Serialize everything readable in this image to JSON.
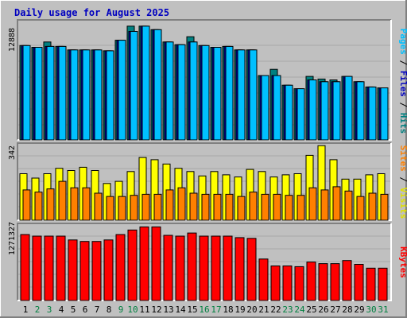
{
  "chart_data": {
    "type": "bar",
    "title": "Daily usage for August 2025",
    "days": [
      "1",
      "2",
      "3",
      "4",
      "5",
      "6",
      "7",
      "8",
      "9",
      "10",
      "11",
      "12",
      "13",
      "14",
      "15",
      "16",
      "17",
      "18",
      "19",
      "20",
      "21",
      "22",
      "23",
      "24",
      "25",
      "26",
      "27",
      "28",
      "29",
      "30",
      "31"
    ],
    "weekend_days": [
      "2",
      "3",
      "9",
      "10",
      "16",
      "17",
      "23",
      "24",
      "30",
      "31"
    ],
    "weekday_color": "#000000",
    "weekend_color": "#008040",
    "panels": [
      {
        "id": "top",
        "ymax_label": "12888",
        "ymax": 12888,
        "legend": [
          {
            "text": "Hits",
            "color": "#008080"
          },
          {
            "text": "Files",
            "color": "#0000c0"
          },
          {
            "text": "Pages",
            "color": "#00c0ff"
          }
        ],
        "series": [
          {
            "name": "Hits",
            "color": "#008080",
            "values": [
              10700,
              10500,
              11100,
              10600,
              10200,
              10200,
              10200,
              10100,
              11300,
              12900,
              12900,
              12500,
              11100,
              10800,
              11700,
              10700,
              10500,
              10600,
              10200,
              10200,
              7300,
              8000,
              6200,
              5800,
              7200,
              6900,
              6800,
              7200,
              6600,
              6000,
              5900
            ]
          },
          {
            "name": "Files",
            "color": "#0000c0",
            "values": [
              10700,
              10500,
              10600,
              10600,
              10200,
              10200,
              10200,
              10100,
              11300,
              12300,
              12900,
              12500,
              11100,
              10800,
              11100,
              10700,
              10500,
              10600,
              10200,
              10200,
              7300,
              7300,
              6200,
              5800,
              6800,
              6600,
              6600,
              7200,
              6600,
              6000,
              5900
            ]
          },
          {
            "name": "Pages",
            "color": "#00c0ff",
            "values": [
              10700,
              10500,
              10600,
              10600,
              10200,
              10200,
              10200,
              10100,
              11300,
              12300,
              12900,
              12500,
              11100,
              10800,
              11100,
              10700,
              10500,
              10600,
              10200,
              10200,
              7300,
              7300,
              6200,
              5800,
              6800,
              6600,
              6600,
              7200,
              6600,
              6000,
              5900
            ]
          }
        ]
      },
      {
        "id": "middle",
        "ymax_label": "342",
        "ymax": 342,
        "legend": [
          {
            "text": "Visits",
            "color": "#e0e000"
          },
          {
            "text": "Sites",
            "color": "#ff8000"
          }
        ],
        "series": [
          {
            "name": "Visits",
            "color": "#ffff00",
            "values": [
              215,
              195,
              215,
              240,
              230,
              245,
              230,
              170,
              180,
              225,
              290,
              280,
              260,
              240,
              225,
              205,
              225,
              210,
              200,
              235,
              225,
              200,
              210,
              215,
              300,
              345,
              280,
              190,
              190,
              210,
              215
            ]
          },
          {
            "name": "Sites",
            "color": "#ff8000",
            "values": [
              140,
              130,
              145,
              180,
              150,
              150,
              125,
              110,
              110,
              115,
              120,
              120,
              140,
              150,
              125,
              120,
              120,
              120,
              110,
              130,
              120,
              120,
              115,
              115,
              150,
              140,
              155,
              135,
              110,
              125,
              120
            ]
          }
        ]
      },
      {
        "id": "bottom",
        "ymax_label": "1271327",
        "ymax": 1271327,
        "legend": [
          {
            "text": "KBytes",
            "color": "#ff0000"
          }
        ],
        "series": [
          {
            "name": "KBytes",
            "color": "#ff0000",
            "values": [
              1122000,
              1096000,
              1096000,
              1096000,
              1031000,
              1005000,
              1005000,
              1031000,
              1122000,
              1200000,
              1252000,
              1252000,
              1109000,
              1096000,
              1148000,
              1096000,
              1096000,
              1096000,
              1070000,
              1057000,
              706000,
              589000,
              589000,
              576000,
              654000,
              628000,
              628000,
              680000,
              615000,
              550000,
              550000
            ]
          }
        ]
      }
    ]
  }
}
